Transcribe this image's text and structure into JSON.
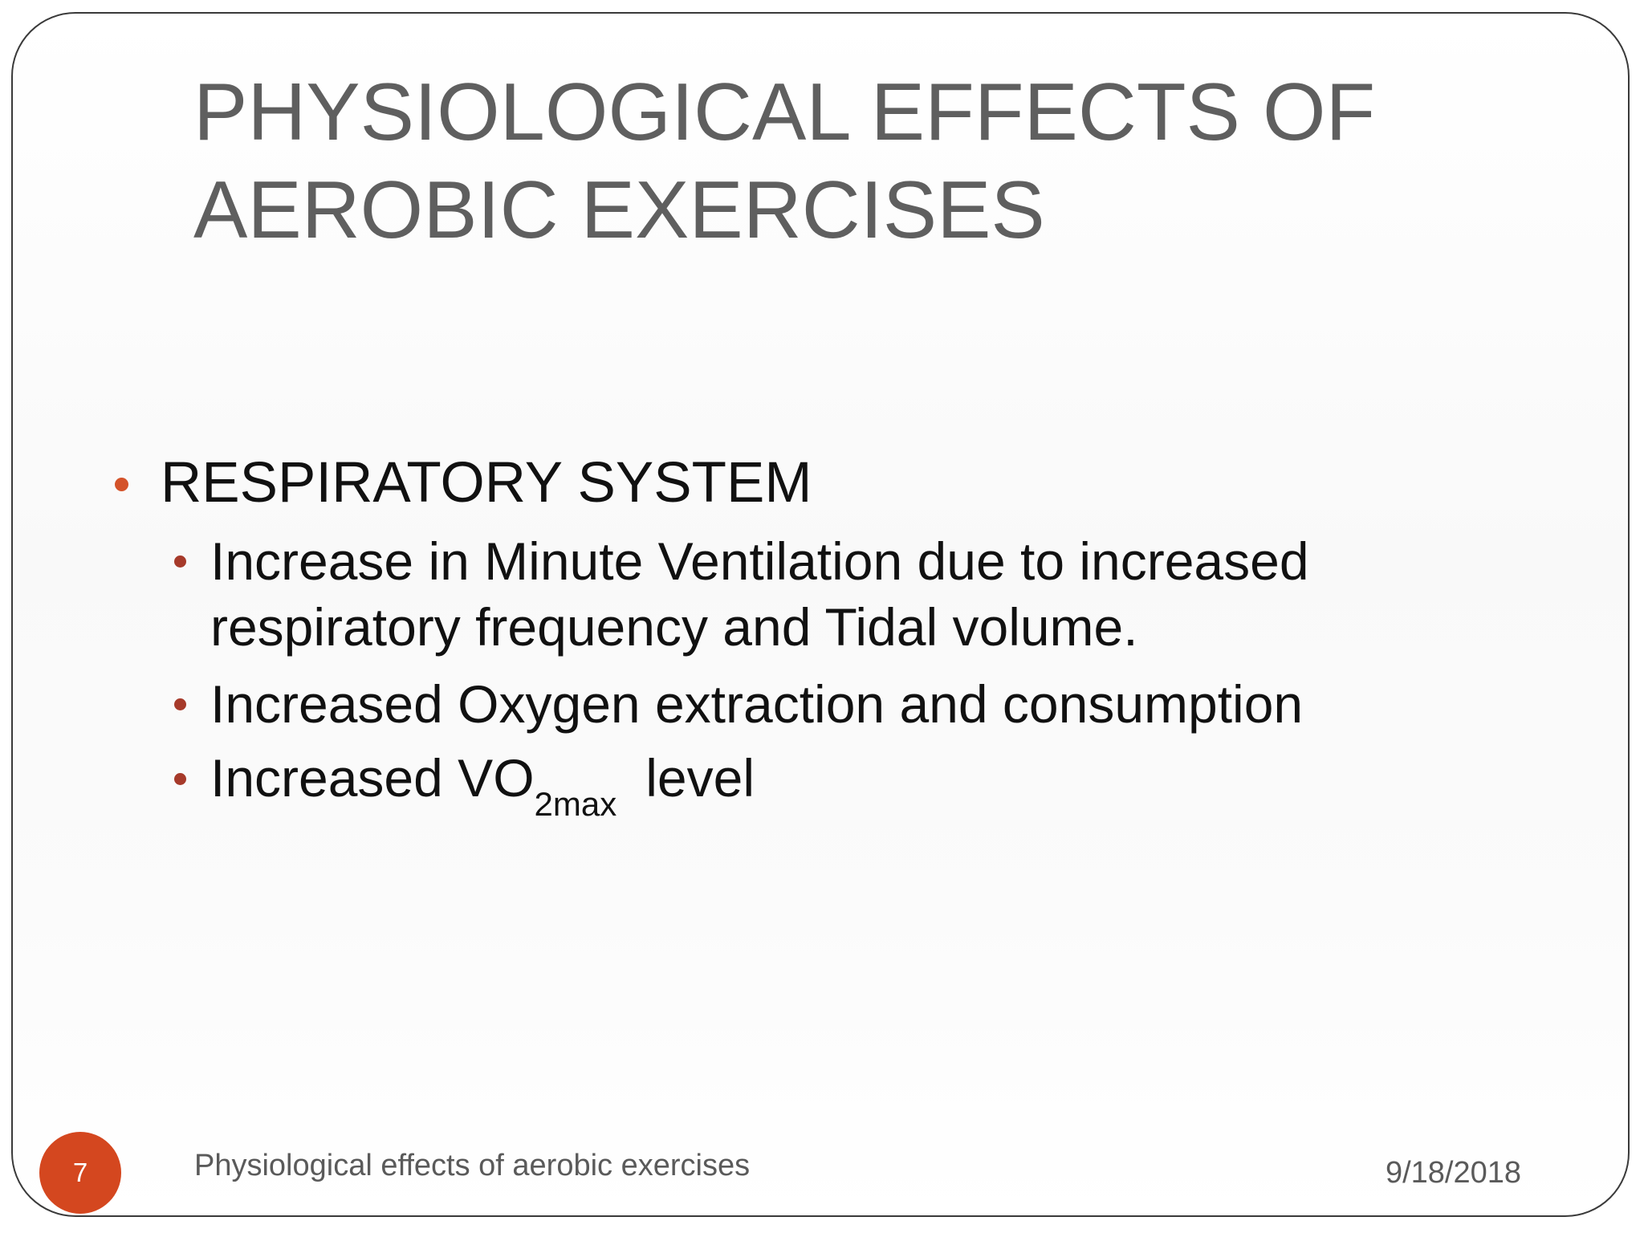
{
  "slide": {
    "title_line1": "PHYSIOLOGICAL EFFECTS OF",
    "title_line2": "AEROBIC EXERCISES",
    "section_heading": "RESPIRATORY SYSTEM",
    "bullets": [
      {
        "line1": "Increase in Minute Ventilation due to increased",
        "line2": "respiratory frequency and Tidal volume."
      },
      {
        "line1": "Increased Oxygen extraction and consumption"
      },
      {
        "prefix": "Increased VO",
        "subscript": "2max",
        "suffix": "level"
      }
    ]
  },
  "footer": {
    "page_number": "7",
    "caption": "Physiological effects of aerobic exercises",
    "date": "9/18/2018"
  },
  "colors": {
    "title": "#5f5f5f",
    "primary_bullet": "#d4532a",
    "secondary_bullet": "#a63a2a",
    "page_badge": "#d4471f"
  }
}
